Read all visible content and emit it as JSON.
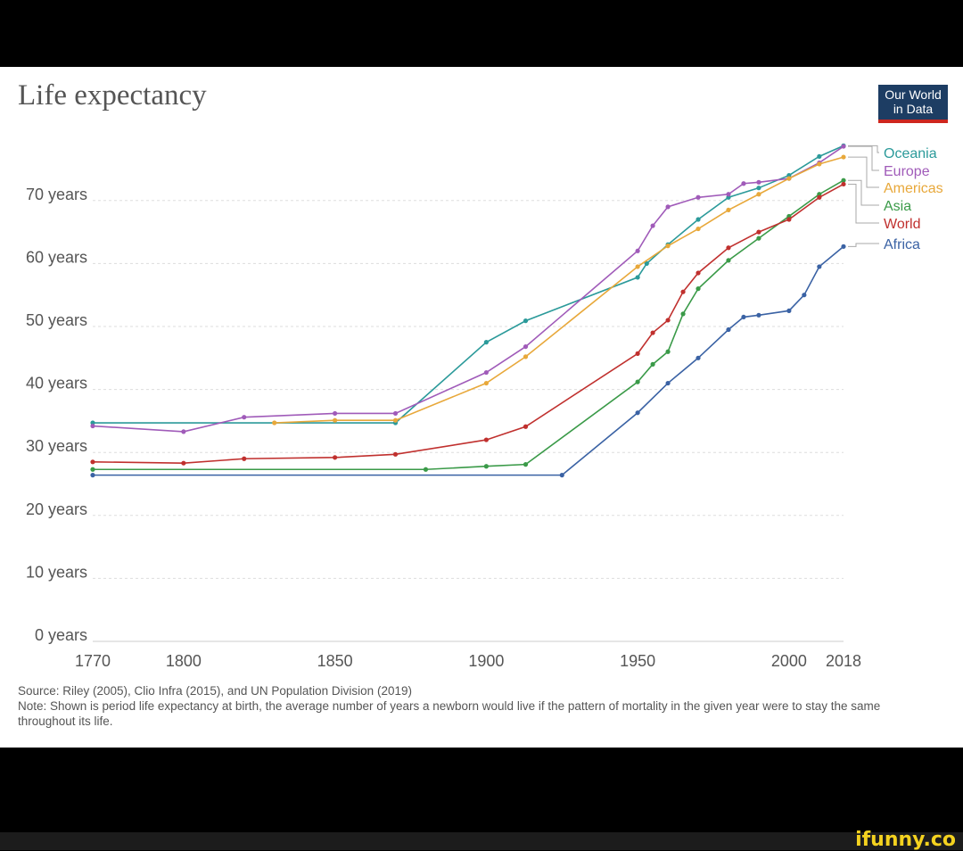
{
  "logo": {
    "text": "Our World in Data",
    "line1": "Our World",
    "line2": "in Data"
  },
  "watermark": "ifunny.co",
  "chart_data": {
    "type": "line",
    "title": "Life expectancy",
    "xlabel": "",
    "ylabel": "",
    "xlim": [
      1770,
      2018
    ],
    "ylim": [
      0,
      78
    ],
    "x_ticks": [
      1770,
      1800,
      1850,
      1900,
      1950,
      2000,
      2018
    ],
    "y_ticks": [
      0,
      10,
      20,
      30,
      40,
      50,
      60,
      70
    ],
    "y_tick_labels": [
      "0 years",
      "10 years",
      "20 years",
      "30 years",
      "40 years",
      "50 years",
      "60 years",
      "70 years"
    ],
    "grid": "horizontal dashed",
    "legend": "right (end-of-line labels)",
    "series": [
      {
        "name": "Oceania",
        "color": "#2b9a9a",
        "x": [
          1770,
          1870,
          1900,
          1913,
          1950,
          1953,
          1960,
          1970,
          1980,
          1990,
          2000,
          2010,
          2018
        ],
        "y": [
          34.7,
          34.7,
          47.5,
          50.9,
          57.8,
          60,
          63,
          67,
          70.5,
          72,
          74,
          77,
          78.7
        ]
      },
      {
        "name": "Europe",
        "color": "#a05bb9",
        "x": [
          1770,
          1800,
          1820,
          1850,
          1870,
          1900,
          1913,
          1950,
          1955,
          1960,
          1970,
          1980,
          1985,
          1990,
          2000,
          2010,
          2018
        ],
        "y": [
          34.2,
          33.3,
          35.6,
          36.2,
          36.2,
          42.7,
          46.8,
          62,
          66,
          69,
          70.5,
          71,
          72.7,
          72.9,
          73.5,
          76,
          78.6
        ]
      },
      {
        "name": "Americas",
        "color": "#e8a83a",
        "x": [
          1830,
          1850,
          1870,
          1900,
          1913,
          1950,
          1960,
          1970,
          1980,
          1990,
          2000,
          2010,
          2018
        ],
        "y": [
          34.7,
          35.1,
          35.1,
          41,
          45.2,
          59.5,
          62.8,
          65.5,
          68.5,
          71,
          73.5,
          75.8,
          76.9
        ]
      },
      {
        "name": "Asia",
        "color": "#3a9a48",
        "x": [
          1770,
          1880,
          1900,
          1913,
          1950,
          1955,
          1960,
          1965,
          1970,
          1980,
          1990,
          2000,
          2010,
          2018
        ],
        "y": [
          27.3,
          27.3,
          27.8,
          28.1,
          41.2,
          44,
          46,
          52,
          56,
          60.5,
          64,
          67.5,
          71,
          73.2
        ]
      },
      {
        "name": "World",
        "color": "#c0302e",
        "x": [
          1770,
          1800,
          1820,
          1850,
          1870,
          1900,
          1913,
          1950,
          1955,
          1960,
          1965,
          1970,
          1980,
          1990,
          2000,
          2010,
          2018
        ],
        "y": [
          28.5,
          28.3,
          29,
          29.2,
          29.7,
          32,
          34.1,
          45.7,
          49,
          51,
          55.5,
          58.5,
          62.5,
          65,
          67,
          70.5,
          72.6
        ]
      },
      {
        "name": "Africa",
        "color": "#3a62a4",
        "x": [
          1770,
          1925,
          1950,
          1960,
          1970,
          1980,
          1985,
          1990,
          2000,
          2005,
          2010,
          2018
        ],
        "y": [
          26.4,
          26.4,
          36.3,
          41,
          45,
          49.5,
          51.5,
          51.8,
          52.5,
          55,
          59.5,
          62.7
        ]
      }
    ],
    "source": "Source: Riley (2005), Clio Infra (2015), and UN Population Division (2019)",
    "note": "Note: Shown is period life expectancy at birth, the average number of years a newborn would live if the pattern of mortality in the given year were to stay the same throughout its life."
  }
}
